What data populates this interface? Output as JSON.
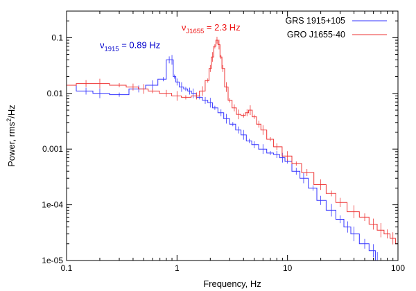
{
  "chart_data": {
    "type": "line",
    "title": "",
    "xlabel": "Frequency, Hz",
    "ylabel_text": "Power, rms",
    "ylabel_sup": "2",
    "ylabel_tail": "/Hz",
    "xscale": "log",
    "yscale": "log",
    "xlim": [
      0.1,
      100
    ],
    "ylim": [
      1e-05,
      0.3
    ],
    "grid": false,
    "legend_position": "top-right",
    "x_ticks": [
      {
        "value": 0.1,
        "label": "0.1"
      },
      {
        "value": 1,
        "label": "1"
      },
      {
        "value": 10,
        "label": "10"
      },
      {
        "value": 100,
        "label": "100"
      }
    ],
    "y_ticks": [
      {
        "value": 1e-05,
        "label": "1e-05"
      },
      {
        "value": 0.0001,
        "label": "1e-04"
      },
      {
        "value": 0.001,
        "label": "0.001"
      },
      {
        "value": 0.01,
        "label": "0.01"
      },
      {
        "value": 0.1,
        "label": "0.1"
      }
    ],
    "series": [
      {
        "name": "GRS 1915+105",
        "color": "#3333ff",
        "x": [
          0.1,
          0.15,
          0.2,
          0.3,
          0.45,
          0.6,
          0.75,
          0.85,
          0.9,
          0.95,
          1.0,
          1.1,
          1.2,
          1.3,
          1.4,
          1.6,
          1.8,
          2.0,
          2.2,
          2.5,
          2.8,
          3.2,
          3.6,
          4.0,
          4.5,
          5.0,
          6.0,
          7.0,
          8.0,
          9.0,
          10,
          12,
          14,
          17,
          20,
          25,
          30,
          35,
          40,
          50,
          60,
          65
        ],
        "y": [
          0.014,
          0.011,
          0.01,
          0.0095,
          0.012,
          0.014,
          0.018,
          0.04,
          0.04,
          0.02,
          0.016,
          0.013,
          0.012,
          0.011,
          0.01,
          0.0085,
          0.0075,
          0.0068,
          0.0055,
          0.0045,
          0.0035,
          0.0028,
          0.0022,
          0.0018,
          0.0014,
          0.0012,
          0.001,
          0.00085,
          0.0008,
          0.0007,
          0.0006,
          0.0004,
          0.0003,
          0.0002,
          0.00012,
          8e-05,
          5.5e-05,
          4e-05,
          3e-05,
          2e-05,
          1.5e-05,
          1e-05
        ]
      },
      {
        "name": "GRO J1655-40",
        "color": "#ee3333",
        "x": [
          0.1,
          0.15,
          0.2,
          0.3,
          0.4,
          0.5,
          0.6,
          0.8,
          1.0,
          1.2,
          1.5,
          1.7,
          1.9,
          2.0,
          2.1,
          2.2,
          2.3,
          2.4,
          2.5,
          2.6,
          2.8,
          3.0,
          3.3,
          3.6,
          4.0,
          4.3,
          4.6,
          5.0,
          5.5,
          6.0,
          7.0,
          8.0,
          10,
          12,
          15,
          20,
          25,
          30,
          40,
          50,
          60,
          70,
          80,
          90,
          100
        ],
        "y": [
          0.014,
          0.015,
          0.015,
          0.014,
          0.013,
          0.012,
          0.011,
          0.01,
          0.009,
          0.0085,
          0.009,
          0.011,
          0.017,
          0.028,
          0.045,
          0.07,
          0.09,
          0.075,
          0.045,
          0.028,
          0.013,
          0.0075,
          0.0055,
          0.0042,
          0.004,
          0.0045,
          0.005,
          0.0038,
          0.0028,
          0.0022,
          0.0015,
          0.0011,
          0.00075,
          0.00055,
          0.00038,
          0.00023,
          0.00016,
          0.00011,
          7.5e-05,
          6e-05,
          4.5e-05,
          3.5e-05,
          3e-05,
          2.5e-05,
          2e-05
        ]
      }
    ],
    "annotations": [
      {
        "id": "nu1915",
        "symbol": "ν",
        "sub": "1915",
        "text": " = 0.89 Hz",
        "color": "#0000cc",
        "x": 0.2,
        "y": 0.065
      },
      {
        "id": "nuJ1655",
        "symbol": "ν",
        "sub": "J1655",
        "text": " = 2.3 Hz",
        "color": "#ee1111",
        "x": 1.1,
        "y": 0.135
      }
    ]
  }
}
